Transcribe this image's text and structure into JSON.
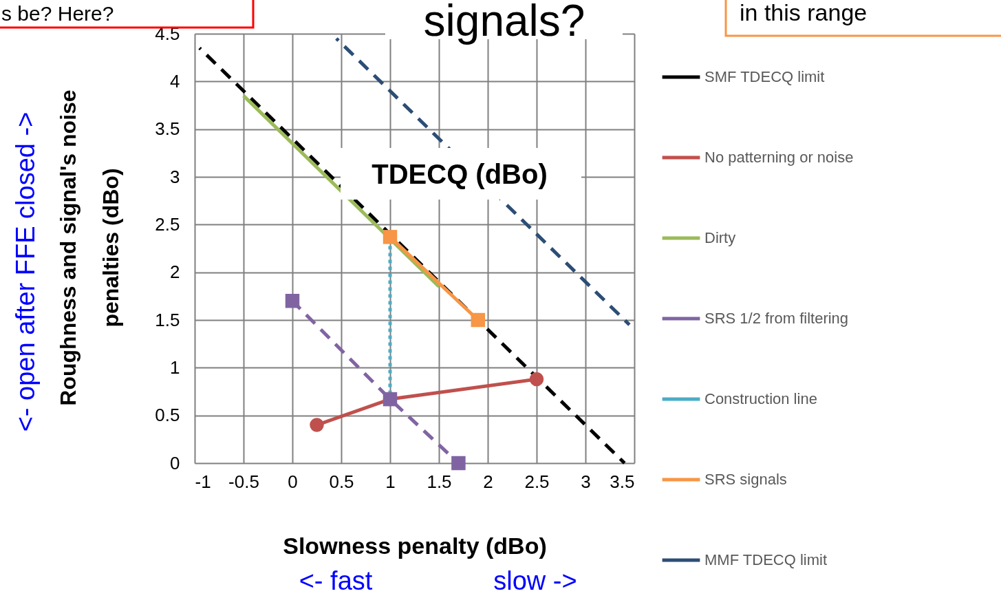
{
  "chart_data": {
    "type": "line",
    "xlabel": "Slowness penalty (dBo)",
    "ylabel": "Roughness and signal's noise penalties (dBo)",
    "xlim": [
      -1,
      3.5
    ],
    "ylim": [
      0,
      4.5
    ],
    "xticks": [
      -1,
      -0.5,
      0,
      0.5,
      1,
      1.5,
      2,
      2.5,
      3,
      3.5
    ],
    "yticks": [
      0,
      0.5,
      1,
      1.5,
      2,
      2.5,
      3,
      3.5,
      4,
      4.5
    ],
    "grid": true,
    "legend": "right",
    "series": [
      {
        "name": "SMF TDECQ limit",
        "color": "#000000",
        "x": [
          -0.95,
          3.4
        ],
        "values": [
          4.35,
          0
        ],
        "line_style": "dashed",
        "marker": "none"
      },
      {
        "name": "No patterning or noise",
        "color": "#c0504d",
        "x": [
          0.25,
          1,
          2.5
        ],
        "values": [
          0.4,
          0.67,
          0.88
        ],
        "line_style": "solid",
        "marker": "circle"
      },
      {
        "name": "Dirty",
        "color": "#9bbb59",
        "x": [
          -0.5,
          1.5
        ],
        "values": [
          3.85,
          1.85
        ],
        "line_style": "solid",
        "marker": "none"
      },
      {
        "name": "SRS 1/2 from filtering",
        "color": "#8064a2",
        "x": [
          0,
          1,
          1.7
        ],
        "values": [
          1.7,
          0.67,
          0
        ],
        "line_style": "dashed",
        "marker": "square"
      },
      {
        "name": "Construction line",
        "color": "#4bacc6",
        "x": [
          1,
          1
        ],
        "values": [
          2.37,
          0.67
        ],
        "line_style": "dotted",
        "marker": "none"
      },
      {
        "name": "SRS signals",
        "color": "#f79646",
        "x": [
          1,
          1.9
        ],
        "values": [
          2.37,
          1.5
        ],
        "line_style": "solid",
        "marker": "square"
      },
      {
        "name": "MMF TDECQ limit",
        "color": "#2c4d75",
        "x": [
          0.45,
          3.45
        ],
        "values": [
          4.45,
          1.45
        ],
        "line_style": "dashed",
        "marker": "none"
      }
    ],
    "annotations": [
      "s be?  Here?",
      "signals?",
      "in this range",
      "TDECQ (dBo)",
      "<- fast",
      "slow ->",
      "<- open      after FFE      closed ->"
    ]
  }
}
